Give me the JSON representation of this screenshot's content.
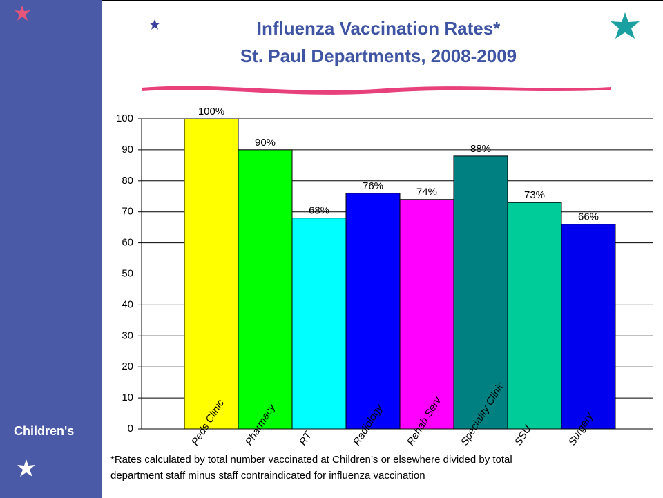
{
  "chart_data": {
    "type": "bar",
    "title": [
      "Influenza Vaccination Rates*",
      "St. Paul Departments, 2008-2009"
    ],
    "categories": [
      "Peds Clinic",
      "Pharmacy",
      "RT",
      "Radiology",
      "Rehab Serv",
      "Speciality Clinic",
      "SSU",
      "Surgery"
    ],
    "values": [
      100,
      90,
      68,
      76,
      74,
      88,
      73,
      66
    ],
    "value_labels": [
      "100%",
      "90%",
      "68%",
      "76%",
      "74%",
      "88%",
      "73%",
      "66%"
    ],
    "colors": [
      "#ffff00",
      "#00ff00",
      "#00ffff",
      "#0000ff",
      "#ff00ff",
      "#008080",
      "#00cc99",
      "#0000ee"
    ],
    "ylim": [
      0,
      100
    ],
    "yticks": [
      0,
      10,
      20,
      30,
      40,
      50,
      60,
      70,
      80,
      90,
      100
    ],
    "grid": true,
    "footnote": [
      "*Rates calculated by total number vaccinated at Children’s or elsewhere divided by total",
      "department  staff minus staff contraindicated for influenza vaccination"
    ]
  },
  "logo": "Children's"
}
